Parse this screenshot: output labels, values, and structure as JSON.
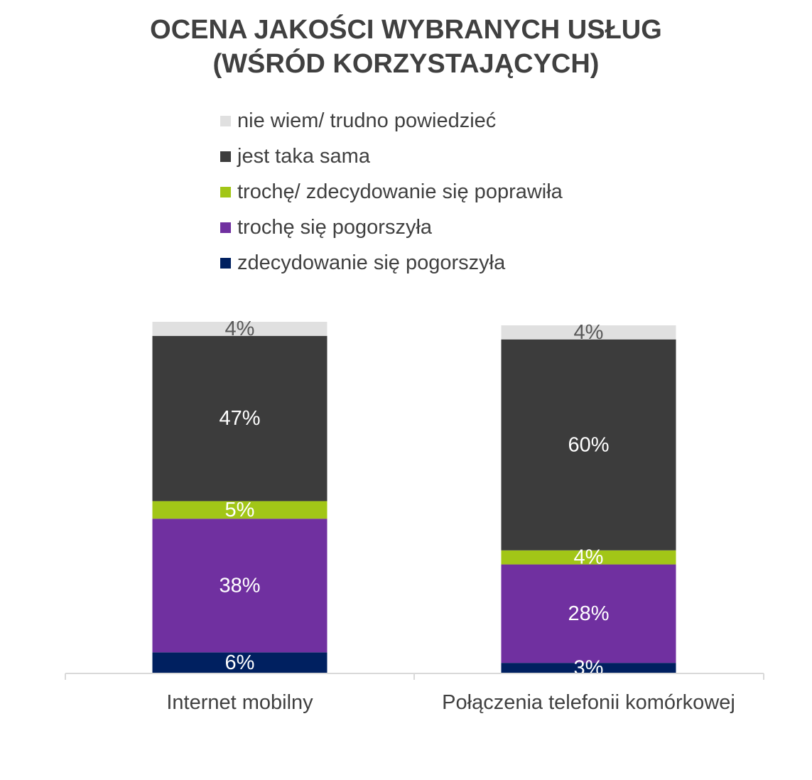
{
  "chart_data": {
    "type": "bar",
    "stacked": true,
    "title_lines": [
      "OCENA JAKOŚCI WYBRANYCH USŁUG",
      "(WŚRÓD KORZYSTAJĄCYCH)"
    ],
    "categories": [
      "Internet mobilny",
      "Połączenia telefonii komórkowej"
    ],
    "series": [
      {
        "name": "zdecydowanie się pogorszyła",
        "values": [
          6,
          3
        ],
        "color": "#002060",
        "label_color": "#ffffff"
      },
      {
        "name": "trochę się pogorszyła",
        "values": [
          38,
          28
        ],
        "color": "#7030a0",
        "label_color": "#ffffff"
      },
      {
        "name": "trochę/ zdecydowanie się poprawiła",
        "values": [
          5,
          4
        ],
        "color": "#a2c617",
        "label_color": "#ffffff"
      },
      {
        "name": "jest taka sama",
        "values": [
          47,
          60
        ],
        "color": "#3c3c3c",
        "label_color": "#ffffff"
      },
      {
        "name": "nie wiem/ trudno powiedzieć",
        "values": [
          4,
          4
        ],
        "color": "#e0e0e0",
        "label_color": "#595959"
      }
    ],
    "legend_order": [
      4,
      3,
      2,
      1,
      0
    ],
    "value_suffix": "%",
    "ylim": [
      0,
      100
    ],
    "grid": false,
    "legend_position": "top"
  }
}
